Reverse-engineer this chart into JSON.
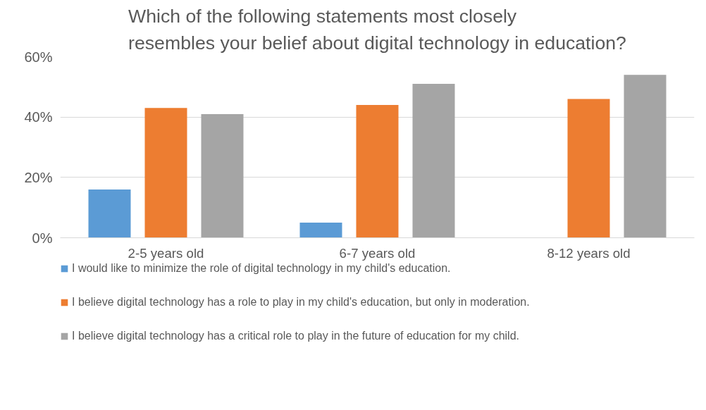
{
  "chart_data": {
    "type": "bar",
    "title": "Which of the following statements most closely resembles your belief about digital technology in education?",
    "categories": [
      "2-5 years old",
      "6-7 years old",
      "8-12 years old"
    ],
    "series": [
      {
        "name": "I would like to minimize the role of digital technology in my child's education.",
        "color": "#5b9bd5",
        "values": [
          16,
          5,
          0
        ]
      },
      {
        "name": "I believe digital technology has a role to play in my child's education, but only in moderation.",
        "color": "#ed7d31",
        "values": [
          43,
          44,
          46
        ]
      },
      {
        "name": "I believe digital technology has a critical role to play in the future of education for my child.",
        "color": "#a5a5a5",
        "values": [
          41,
          51,
          54
        ]
      }
    ],
    "ylim": [
      0,
      60
    ],
    "yticks": [
      {
        "value": 0,
        "label": "0%"
      },
      {
        "value": 20,
        "label": "20%"
      },
      {
        "value": 40,
        "label": "40%"
      },
      {
        "value": 60,
        "label": "60%"
      }
    ],
    "grid": "y",
    "legend": "bottom"
  }
}
